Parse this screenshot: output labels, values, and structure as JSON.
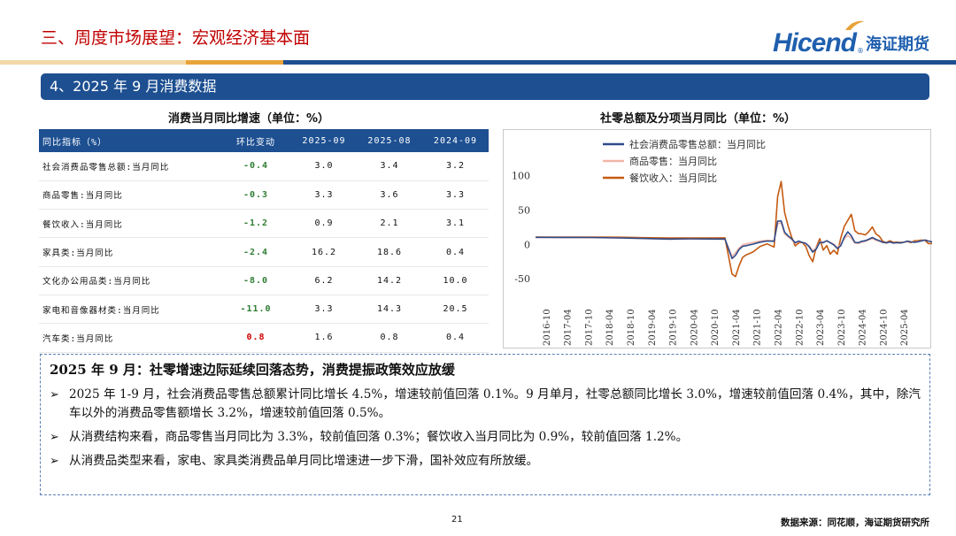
{
  "header": {
    "title": "三、周度市场展望：宏观经济基本面",
    "logo_text": "Hicend",
    "logo_reg": "®",
    "logo_cn": "海证期货"
  },
  "colors": {
    "brand_blue": "#1d4f91",
    "title_red": "#c00000",
    "gold": "#e8a33a",
    "negative_green": "#2e7d32"
  },
  "section": {
    "title": "4、2025 年 9 月消费数据"
  },
  "table": {
    "title": "消费当月同比增速（单位：%）",
    "headers": [
      "同比指标（%）",
      "环比变动",
      "2025-09",
      "2025-08",
      "2024-09"
    ],
    "rows": [
      [
        "社会消费品零售总额:当月同比",
        "-0.4",
        "3.0",
        "3.4",
        "3.2"
      ],
      [
        "商品零售:当月同比",
        "-0.3",
        "3.3",
        "3.6",
        "3.3"
      ],
      [
        "餐饮收入:当月同比",
        "-1.2",
        "0.9",
        "2.1",
        "3.1"
      ],
      [
        "家具类:当月同比",
        "-2.4",
        "16.2",
        "18.6",
        "0.4"
      ],
      [
        "文化办公用品类:当月同比",
        "-8.0",
        "6.2",
        "14.2",
        "10.0"
      ],
      [
        "家电和音像器材类:当月同比",
        "-11.0",
        "3.3",
        "14.3",
        "20.5"
      ],
      [
        "汽车类:当月同比",
        "0.8",
        "1.6",
        "0.8",
        "0.4"
      ]
    ]
  },
  "chart_data": {
    "type": "line",
    "title": "社零总额及分项当月同比（单位：%）",
    "ylim": [
      -60,
      115
    ],
    "yticks": [
      100,
      50,
      0,
      -50
    ],
    "xticks": [
      "2016-10",
      "2017-04",
      "2017-10",
      "2018-04",
      "2018-10",
      "2019-04",
      "2019-10",
      "2020-04",
      "2020-10",
      "2021-04",
      "2021-10",
      "2022-04",
      "2022-10",
      "2023-04",
      "2023-10",
      "2024-04",
      "2024-10",
      "2025-04"
    ],
    "x_start": "2016-07",
    "x_end": "2025-09",
    "legend_position": "top-left",
    "grid": false,
    "series": [
      {
        "name": "社会消费品零售总额：当月同比",
        "color": "#2f4b8a",
        "values": [
          [
            0,
            10.4
          ],
          [
            8,
            10.2
          ],
          [
            16,
            10.1
          ],
          [
            24,
            9.5
          ],
          [
            32,
            8.6
          ],
          [
            38,
            7.8
          ],
          [
            44,
            8.2
          ],
          [
            50,
            8.0
          ],
          [
            54,
            7.8
          ],
          [
            56,
            -20.5
          ],
          [
            57,
            -15.8
          ],
          [
            58,
            -7.5
          ],
          [
            59,
            -2.8
          ],
          [
            60,
            -1.8
          ],
          [
            62,
            0.5
          ],
          [
            64,
            3.3
          ],
          [
            66,
            5.0
          ],
          [
            68,
            4.6
          ],
          [
            69,
            33.8
          ],
          [
            70,
            34.2
          ],
          [
            71,
            17.7
          ],
          [
            72,
            12.4
          ],
          [
            73,
            8.5
          ],
          [
            74,
            2.5
          ],
          [
            75,
            4.9
          ],
          [
            76,
            3.1
          ],
          [
            77,
            1.7
          ],
          [
            78,
            -3.5
          ],
          [
            79,
            -11.1
          ],
          [
            80,
            -6.7
          ],
          [
            81,
            3.1
          ],
          [
            82,
            2.7
          ],
          [
            83,
            5.4
          ],
          [
            84,
            2.5
          ],
          [
            85,
            -0.5
          ],
          [
            86,
            -5.9
          ],
          [
            87,
            -1.8
          ],
          [
            88,
            10.6
          ],
          [
            89,
            18.4
          ],
          [
            90,
            12.7
          ],
          [
            91,
            3.1
          ],
          [
            92,
            2.5
          ],
          [
            93,
            4.6
          ],
          [
            94,
            5.5
          ],
          [
            95,
            7.6
          ],
          [
            96,
            10.1
          ],
          [
            97,
            7.4
          ],
          [
            98,
            5.5
          ],
          [
            99,
            3.1
          ],
          [
            100,
            2.3
          ],
          [
            101,
            3.7
          ],
          [
            102,
            2.0
          ],
          [
            103,
            2.7
          ],
          [
            104,
            2.1
          ],
          [
            105,
            3.2
          ],
          [
            106,
            4.8
          ],
          [
            107,
            3.7
          ],
          [
            108,
            3.0
          ],
          [
            109,
            4.0
          ],
          [
            110,
            5.1
          ],
          [
            111,
            6.4
          ],
          [
            112,
            4.8
          ],
          [
            113,
            3.7
          ],
          [
            114,
            3.4
          ],
          [
            115,
            3.0
          ]
        ]
      },
      {
        "name": "商品零售：当月同比",
        "color": "#f2b6a8",
        "values": [
          [
            0,
            10.2
          ],
          [
            8,
            10.0
          ],
          [
            16,
            9.9
          ],
          [
            24,
            9.3
          ],
          [
            32,
            8.4
          ],
          [
            38,
            7.6
          ],
          [
            44,
            8.0
          ],
          [
            50,
            7.8
          ],
          [
            54,
            7.6
          ],
          [
            56,
            -17.6
          ],
          [
            57,
            -12.0
          ],
          [
            58,
            -5.1
          ],
          [
            59,
            -0.6
          ],
          [
            60,
            0.8
          ],
          [
            62,
            2.9
          ],
          [
            64,
            5.0
          ],
          [
            66,
            6.0
          ],
          [
            68,
            5.5
          ],
          [
            69,
            30.0
          ],
          [
            70,
            31.5
          ],
          [
            71,
            15.0
          ],
          [
            72,
            11.0
          ],
          [
            73,
            7.0
          ],
          [
            74,
            2.0
          ],
          [
            75,
            4.0
          ],
          [
            76,
            3.0
          ],
          [
            77,
            1.5
          ],
          [
            78,
            -2.0
          ],
          [
            79,
            -9.0
          ],
          [
            80,
            -5.0
          ],
          [
            81,
            3.5
          ],
          [
            82,
            3.5
          ],
          [
            83,
            5.5
          ],
          [
            84,
            3.0
          ],
          [
            85,
            0.5
          ],
          [
            86,
            -4.0
          ],
          [
            87,
            -0.5
          ],
          [
            88,
            8.5
          ],
          [
            89,
            13.0
          ],
          [
            90,
            9.0
          ],
          [
            91,
            2.0
          ],
          [
            92,
            1.5
          ],
          [
            93,
            3.0
          ],
          [
            94,
            4.5
          ],
          [
            95,
            6.5
          ],
          [
            96,
            8.5
          ],
          [
            97,
            6.0
          ],
          [
            98,
            4.5
          ],
          [
            99,
            3.0
          ],
          [
            100,
            2.0
          ],
          [
            101,
            3.5
          ],
          [
            102,
            2.0
          ],
          [
            103,
            2.5
          ],
          [
            104,
            2.0
          ],
          [
            105,
            3.0
          ],
          [
            106,
            5.0
          ],
          [
            107,
            4.0
          ],
          [
            108,
            3.2
          ],
          [
            109,
            4.5
          ],
          [
            110,
            5.3
          ],
          [
            111,
            6.5
          ],
          [
            112,
            5.2
          ],
          [
            113,
            4.4
          ],
          [
            114,
            3.6
          ],
          [
            115,
            3.3
          ]
        ]
      },
      {
        "name": "餐饮收入：当月同比",
        "color": "#c55a11",
        "values": [
          [
            0,
            10.8
          ],
          [
            8,
            10.8
          ],
          [
            16,
            10.6
          ],
          [
            24,
            10.5
          ],
          [
            32,
            9.8
          ],
          [
            38,
            9.4
          ],
          [
            44,
            9.5
          ],
          [
            50,
            9.5
          ],
          [
            54,
            9.6
          ],
          [
            56,
            -43.1
          ],
          [
            57,
            -46.8
          ],
          [
            58,
            -31.1
          ],
          [
            59,
            -18.9
          ],
          [
            60,
            -15.2
          ],
          [
            62,
            -11.0
          ],
          [
            64,
            -2.9
          ],
          [
            66,
            0.8
          ],
          [
            68,
            -3.8
          ],
          [
            69,
            69.6
          ],
          [
            70,
            91.6
          ],
          [
            71,
            46.4
          ],
          [
            72,
            26.6
          ],
          [
            73,
            10.7
          ],
          [
            74,
            -2.1
          ],
          [
            75,
            2.2
          ],
          [
            76,
            3.1
          ],
          [
            77,
            -2.6
          ],
          [
            78,
            -16.4
          ],
          [
            79,
            -25.1
          ],
          [
            80,
            -4.0
          ],
          [
            81,
            8.4
          ],
          [
            82,
            -8.1
          ],
          [
            83,
            -1.7
          ],
          [
            84,
            -14.1
          ],
          [
            85,
            -8.4
          ],
          [
            86,
            -14.1
          ],
          [
            87,
            9.2
          ],
          [
            88,
            26.3
          ],
          [
            89,
            35.1
          ],
          [
            90,
            43.8
          ],
          [
            91,
            20.1
          ],
          [
            92,
            15.8
          ],
          [
            93,
            15.4
          ],
          [
            94,
            13.8
          ],
          [
            95,
            18.7
          ],
          [
            96,
            25.4
          ],
          [
            97,
            15.4
          ],
          [
            98,
            11.8
          ],
          [
            99,
            4.4
          ],
          [
            100,
            2.7
          ],
          [
            101,
            5.4
          ],
          [
            102,
            3.0
          ],
          [
            103,
            3.3
          ],
          [
            104,
            3.1
          ],
          [
            105,
            3.2
          ],
          [
            106,
            4.3
          ],
          [
            107,
            2.7
          ],
          [
            108,
            5.4
          ],
          [
            109,
            5.6
          ],
          [
            110,
            6.4
          ],
          [
            111,
            5.9
          ],
          [
            112,
            1.1
          ],
          [
            113,
            1.4
          ],
          [
            114,
            2.1
          ],
          [
            115,
            0.9
          ]
        ]
      }
    ]
  },
  "summary": {
    "heading": "2025 年 9 月：社零增速边际延续回落态势，消费提振政策效应放缓",
    "bullet_mark": "➢",
    "bullets": [
      "2025 年 1-9 月，社会消费品零售总额累计同比增长 4.5%，增速较前值回落 0.1%。9 月单月，社零总额同比增长 3.0%，增速较前值回落 0.4%，其中，除汽车以外的消费品零售额增长 3.2%，增速较前值回落 0.5%。",
      "从消费结构来看，商品零售当月同比为 3.3%，较前值回落 0.3%；餐饮收入当月同比为 0.9%，较前值回落 1.2%。",
      "从消费品类型来看，家电、家具类消费品单月同比增速进一步下滑，国补效应有所放缓。"
    ]
  },
  "footer": {
    "page_number": "21",
    "source": "数据来源：同花顺，海证期货研究所"
  }
}
